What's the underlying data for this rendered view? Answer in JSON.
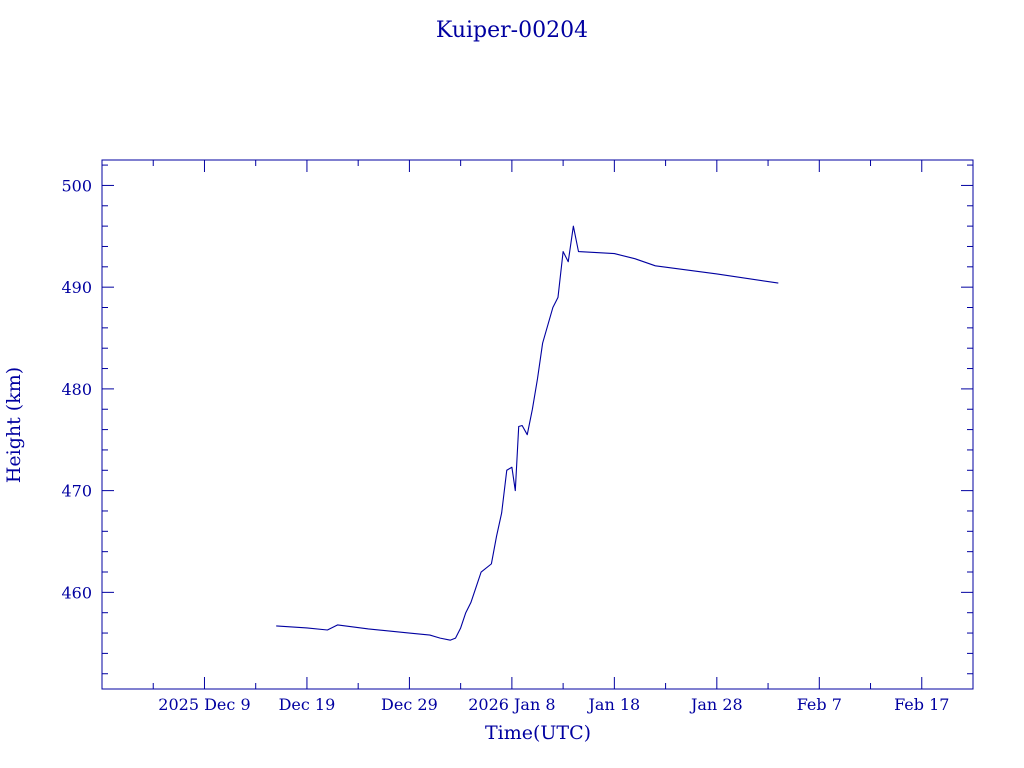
{
  "chart_data": {
    "type": "line",
    "title": "Kuiper-00204",
    "xlabel": "Time(UTC)",
    "ylabel": "Height (km)",
    "color": "#0000a0",
    "x_tick_labels": [
      "2025 Dec  9",
      "Dec 19",
      "Dec 29",
      "2026 Jan  8",
      "Jan 18",
      "Jan 28",
      "Feb  7",
      "Feb 17"
    ],
    "y_tick_labels": [
      "460",
      "470",
      "480",
      "490",
      "500"
    ],
    "xlim": [
      "2025-11-29",
      "2026-02-22"
    ],
    "ylim": [
      450.5,
      502.5
    ],
    "grid": false,
    "series": [
      {
        "points": [
          [
            "2025-12-16",
            456.7
          ],
          [
            "2025-12-19",
            456.5
          ],
          [
            "2025-12-21",
            456.3
          ],
          [
            "2025-12-22",
            456.8
          ],
          [
            "2025-12-25",
            456.4
          ],
          [
            "2025-12-29",
            456.0
          ],
          [
            "2025-12-31",
            455.8
          ],
          [
            "2026-01-01",
            455.5
          ],
          [
            "2026-01-02",
            455.3
          ],
          [
            "2026-01-02",
            455.5
          ],
          [
            "2026-01-03",
            456.5
          ],
          [
            "2026-01-03",
            458.0
          ],
          [
            "2026-01-04",
            459.0
          ],
          [
            "2026-01-04",
            460.5
          ],
          [
            "2026-01-05",
            462.0
          ],
          [
            "2026-01-06",
            462.8
          ],
          [
            "2026-01-06",
            465.5
          ],
          [
            "2026-01-07",
            467.8
          ],
          [
            "2026-01-07",
            472.0
          ],
          [
            "2026-01-08",
            472.3
          ],
          [
            "2026-01-08",
            470.0
          ],
          [
            "2026-01-08",
            476.3
          ],
          [
            "2026-01-09",
            476.4
          ],
          [
            "2026-01-09",
            475.5
          ],
          [
            "2026-01-10",
            478.0
          ],
          [
            "2026-01-10",
            481.0
          ],
          [
            "2026-01-11",
            484.5
          ],
          [
            "2026-01-12",
            488.0
          ],
          [
            "2026-01-12",
            489.0
          ],
          [
            "2026-01-13",
            493.5
          ],
          [
            "2026-01-13",
            492.5
          ],
          [
            "2026-01-14",
            496.0
          ],
          [
            "2026-01-14",
            493.5
          ],
          [
            "2026-01-18",
            493.3
          ],
          [
            "2026-01-20",
            492.8
          ],
          [
            "2026-01-22",
            492.1
          ],
          [
            "2026-01-28",
            491.3
          ],
          [
            "2026-02-03",
            490.4
          ]
        ]
      }
    ]
  }
}
